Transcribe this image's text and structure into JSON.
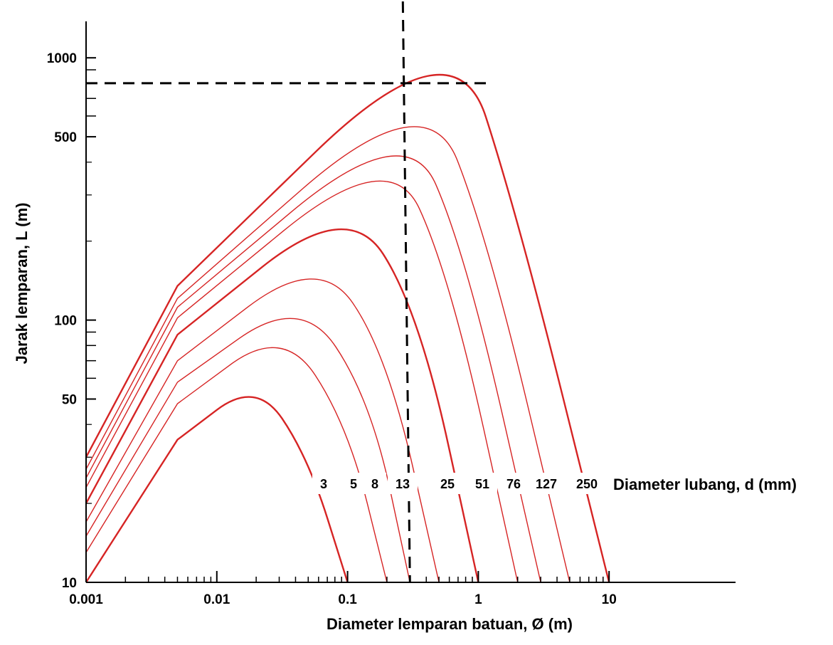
{
  "chart_data": {
    "type": "line",
    "xlabel": "Diameter lemparan batuan, Ø (m)",
    "ylabel": "Jarak lemparan, L (m)",
    "x_scale": "log",
    "y_scale": "log",
    "xlim": [
      0.001,
      50
    ],
    "ylim": [
      10,
      1600
    ],
    "x_tick_labels": [
      "0.001",
      "0.01",
      "0.1",
      "1",
      "10"
    ],
    "x_tick_values": [
      0.001,
      0.01,
      0.1,
      1,
      10
    ],
    "y_tick_labels": [
      "10",
      "50",
      "100",
      "500",
      "1000"
    ],
    "y_tick_values": [
      10,
      50,
      100,
      500,
      1000
    ],
    "legend_title": "Diameter lubang, d (mm)",
    "grid": false,
    "color": "#d62424",
    "series": [
      {
        "name": "3",
        "points": [
          [
            0.001,
            10
          ],
          [
            0.005,
            35
          ],
          [
            0.02,
            59
          ],
          [
            0.05,
            30
          ],
          [
            0.1,
            10
          ]
        ]
      },
      {
        "name": "5",
        "points": [
          [
            0.001,
            13
          ],
          [
            0.005,
            48
          ],
          [
            0.032,
            95
          ],
          [
            0.1,
            40
          ],
          [
            0.2,
            10
          ]
        ]
      },
      {
        "name": "8",
        "points": [
          [
            0.001,
            15
          ],
          [
            0.005,
            58
          ],
          [
            0.044,
            125
          ],
          [
            0.15,
            50
          ],
          [
            0.3,
            10
          ]
        ]
      },
      {
        "name": "13",
        "points": [
          [
            0.001,
            17
          ],
          [
            0.005,
            70
          ],
          [
            0.06,
            180
          ],
          [
            0.2,
            75
          ],
          [
            0.5,
            10
          ]
        ]
      },
      {
        "name": "25",
        "points": [
          [
            0.001,
            20
          ],
          [
            0.005,
            88
          ],
          [
            0.1,
            290
          ],
          [
            0.35,
            110
          ],
          [
            1,
            10
          ]
        ]
      },
      {
        "name": "51",
        "points": [
          [
            0.001,
            23
          ],
          [
            0.005,
            102
          ],
          [
            0.21,
            470
          ],
          [
            0.6,
            150
          ],
          [
            2,
            10
          ]
        ]
      },
      {
        "name": "76",
        "points": [
          [
            0.001,
            25
          ],
          [
            0.005,
            112
          ],
          [
            0.28,
            600
          ],
          [
            0.8,
            180
          ],
          [
            3,
            10
          ]
        ]
      },
      {
        "name": "127",
        "points": [
          [
            0.001,
            27
          ],
          [
            0.005,
            121
          ],
          [
            0.4,
            820
          ],
          [
            1.2,
            200
          ],
          [
            5,
            10
          ]
        ]
      },
      {
        "name": "250",
        "points": [
          [
            0.001,
            30
          ],
          [
            0.005,
            135
          ],
          [
            0.65,
            1420
          ],
          [
            2.0,
            250
          ],
          [
            10,
            10
          ]
        ]
      }
    ],
    "reference_lines": [
      {
        "type": "vertical",
        "x": 0.3
      },
      {
        "type": "horizontal",
        "y": 800
      }
    ]
  }
}
